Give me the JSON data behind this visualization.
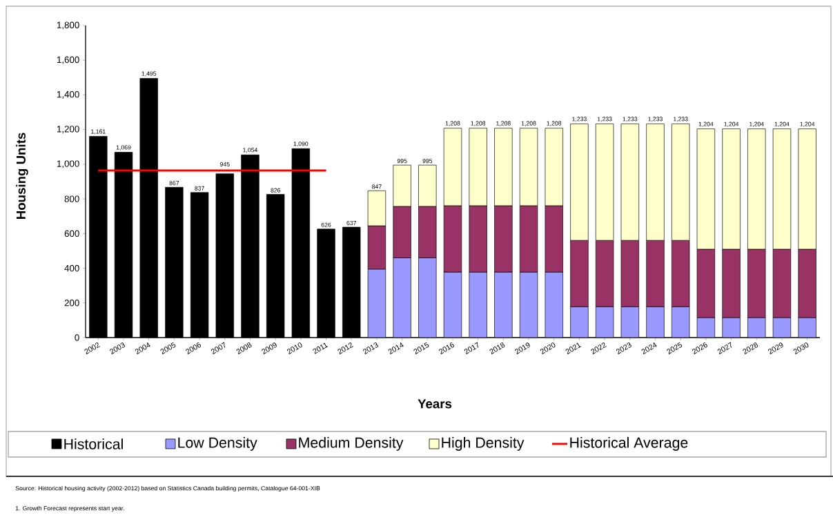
{
  "chart_data": {
    "type": "bar",
    "stacked": true,
    "xlabel": "Years",
    "ylabel": "Housing Units",
    "categories": [
      "2002",
      "2003",
      "2004",
      "2005",
      "2006",
      "2007",
      "2008",
      "2009",
      "2010",
      "2011",
      "2012",
      "2013",
      "2014",
      "2015",
      "2016",
      "2017",
      "2018",
      "2019",
      "2020",
      "2021",
      "2022",
      "2023",
      "2024",
      "2025",
      "2026",
      "2027",
      "2028",
      "2029",
      "2030"
    ],
    "series": [
      {
        "name": "Historical",
        "color": "#000000",
        "values": [
          1161,
          1069,
          1495,
          867,
          837,
          945,
          1054,
          826,
          1090,
          626,
          637,
          null,
          null,
          null,
          null,
          null,
          null,
          null,
          null,
          null,
          null,
          null,
          null,
          null,
          null,
          null,
          null,
          null,
          null
        ],
        "value_labels": [
          "1,161",
          "1,069",
          "1,495",
          "867",
          "837",
          "945",
          "1,054",
          "826",
          "1,090",
          "626",
          "637",
          null,
          null,
          null,
          null,
          null,
          null,
          null,
          null,
          null,
          null,
          null,
          null,
          null,
          null,
          null,
          null,
          null,
          null
        ]
      },
      {
        "name": "Low Density",
        "color": "#9999ff",
        "values": [
          null,
          null,
          null,
          null,
          null,
          null,
          null,
          null,
          null,
          null,
          null,
          395,
          460,
          460,
          378,
          378,
          378,
          378,
          378,
          178,
          178,
          178,
          178,
          178,
          115,
          115,
          115,
          115,
          115
        ]
      },
      {
        "name": "Medium Density",
        "color": "#993366",
        "values": [
          null,
          null,
          null,
          null,
          null,
          null,
          null,
          null,
          null,
          null,
          null,
          250,
          297,
          297,
          383,
          383,
          383,
          383,
          383,
          383,
          383,
          383,
          383,
          383,
          395,
          395,
          395,
          395,
          395
        ]
      },
      {
        "name": "High Density",
        "color": "#ffffcc",
        "values": [
          null,
          null,
          null,
          null,
          null,
          null,
          null,
          null,
          null,
          null,
          null,
          202,
          238,
          238,
          447,
          447,
          447,
          447,
          447,
          672,
          672,
          672,
          672,
          672,
          694,
          694,
          694,
          694,
          694
        ]
      },
      {
        "name": "Historical Average",
        "type": "line",
        "color": "#ff0000",
        "values": [
          964,
          964,
          964,
          964,
          964,
          964,
          964,
          964,
          964,
          964,
          null,
          null,
          null,
          null,
          null,
          null,
          null,
          null,
          null,
          null,
          null,
          null,
          null,
          null,
          null,
          null,
          null,
          null,
          null
        ]
      }
    ],
    "totals": [
      null,
      null,
      null,
      null,
      null,
      null,
      null,
      null,
      null,
      null,
      null,
      "847",
      "995",
      "995",
      "1,208",
      "1,208",
      "1,208",
      "1,208",
      "1,208",
      "1,233",
      "1,233",
      "1,233",
      "1,233",
      "1,233",
      "1,204",
      "1,204",
      "1,204",
      "1,204",
      "1,204"
    ],
    "ylim": [
      0,
      1800
    ],
    "yticks": [
      0,
      {
        "value": 200,
        "label": "200"
      },
      {
        "value": 400,
        "label": "400"
      },
      {
        "value": 600,
        "label": "600"
      },
      {
        "value": 800,
        "label": "800"
      },
      {
        "value": 1000,
        "label": "1,000"
      },
      {
        "value": 1200,
        "label": "1,200"
      },
      {
        "value": 1400,
        "label": "1,400"
      },
      {
        "value": 1600,
        "label": "1,600"
      },
      {
        "value": 1800,
        "label": "1,800"
      }
    ],
    "grid": false,
    "legend": "bottom",
    "marker": "none",
    "line_style": "solid",
    "annotations": [
      "Source: Historical housing activity (2002-2012) based on Statistics Canada building permits, Catalogue 64-001-XIB",
      "1. Growth Forecast represents start year."
    ]
  }
}
